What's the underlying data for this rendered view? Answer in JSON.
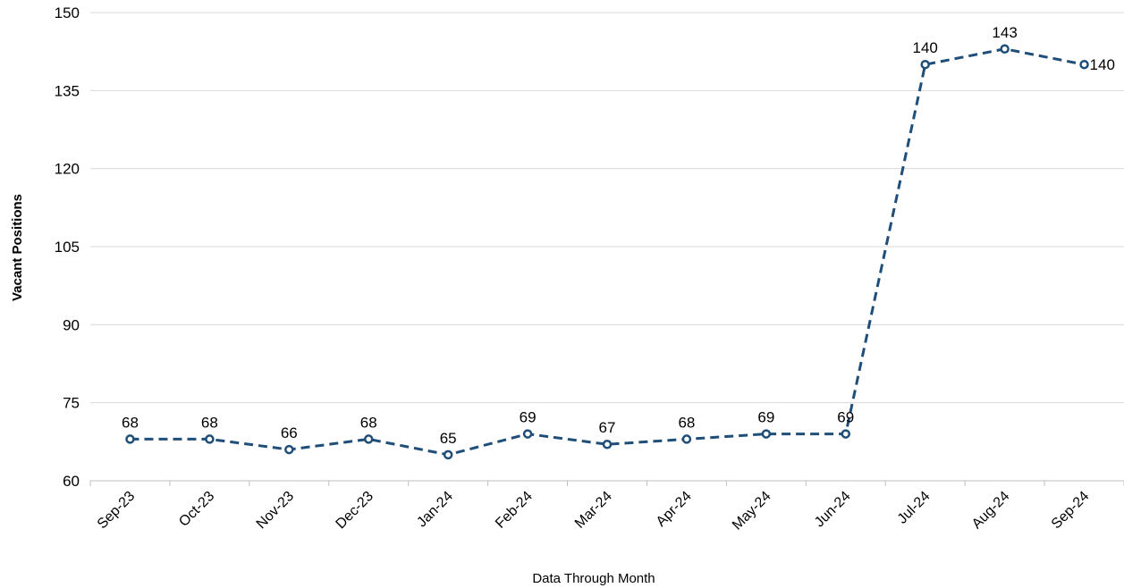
{
  "chart_data": {
    "type": "line",
    "title": "",
    "xlabel": "Data Through Month",
    "ylabel": "Vacant Positions",
    "categories": [
      "Sep-23",
      "Oct-23",
      "Nov-23",
      "Dec-23",
      "Jan-24",
      "Feb-24",
      "Mar-24",
      "Apr-24",
      "May-24",
      "Jun-24",
      "Jul-24",
      "Aug-24",
      "Sep-24"
    ],
    "series": [
      {
        "values": [
          68,
          68,
          66,
          68,
          65,
          69,
          67,
          68,
          69,
          69,
          140,
          143,
          140
        ],
        "color": "#1f4e79",
        "line_style": "dashed",
        "marker": "circle"
      }
    ],
    "data_labels": [
      "68",
      "68",
      "66",
      "68",
      "65",
      "69",
      "67",
      "68",
      "69",
      "69",
      "140",
      "143",
      "140"
    ],
    "ylim": [
      60,
      150
    ],
    "yticks": [
      60,
      75,
      90,
      105,
      120,
      135,
      150
    ],
    "ytick_labels": [
      "60",
      "75",
      "90",
      "105",
      "120",
      "135",
      "150"
    ],
    "grid": "horizontal",
    "legend": "none"
  },
  "colors": {
    "series": "#1f4e79",
    "grid": "#d9d9d9",
    "axis": "#bfbfbf",
    "text": "#000000"
  }
}
